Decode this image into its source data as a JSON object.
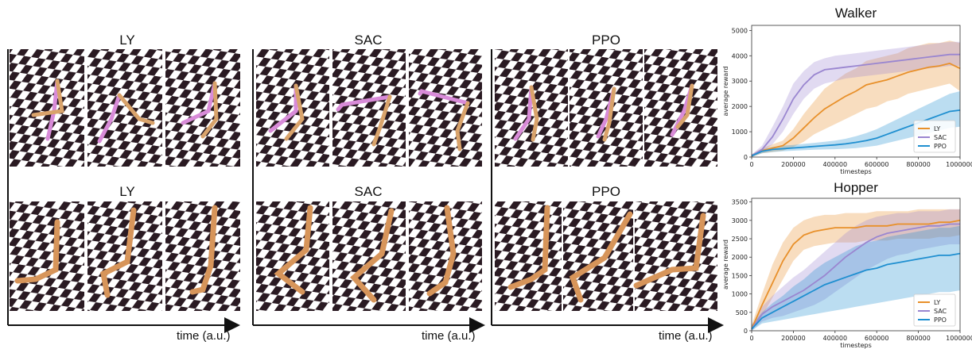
{
  "panels": [
    {
      "title": "LY",
      "robot": "walker"
    },
    {
      "title": "SAC",
      "robot": "walker"
    },
    {
      "title": "PPO",
      "robot": "walker"
    },
    {
      "title": "LY",
      "robot": "hopper"
    },
    {
      "title": "SAC",
      "robot": "hopper"
    },
    {
      "title": "PPO",
      "robot": "hopper"
    }
  ],
  "time_axis_label": "time (a.u.)",
  "colors": {
    "LY": "#e8902a",
    "SAC": "#9a86d0",
    "PPO": "#1f8fd0",
    "walker_limb_a": "#d88bd8",
    "walker_limb_b": "#d9a36b",
    "hopper_limb": "#d7955a"
  },
  "chart_data": [
    {
      "type": "line",
      "title": "Walker",
      "xlabel": "timesteps",
      "ylabel": "average reward",
      "xlim": [
        0,
        1000000
      ],
      "ylim": [
        0,
        5200
      ],
      "xticks": [
        0,
        200000,
        400000,
        600000,
        800000,
        1000000
      ],
      "yticks": [
        0,
        1000,
        2000,
        3000,
        4000,
        5000
      ],
      "legend": "bottom-right",
      "x": [
        0,
        50000,
        100000,
        150000,
        200000,
        250000,
        300000,
        350000,
        400000,
        450000,
        500000,
        550000,
        600000,
        650000,
        700000,
        750000,
        800000,
        850000,
        900000,
        950000,
        1000000
      ],
      "series": [
        {
          "name": "LY",
          "values": [
            50,
            250,
            350,
            450,
            750,
            1150,
            1550,
            1900,
            2150,
            2400,
            2600,
            2850,
            2950,
            3050,
            3200,
            3350,
            3450,
            3550,
            3600,
            3700,
            3500
          ],
          "band": [
            [
              0,
              100
            ],
            [
              150,
              350
            ],
            [
              200,
              500
            ],
            [
              250,
              650
            ],
            [
              400,
              1100
            ],
            [
              600,
              1700
            ],
            [
              900,
              2200
            ],
            [
              1100,
              2700
            ],
            [
              1300,
              3000
            ],
            [
              1500,
              3300
            ],
            [
              1700,
              3500
            ],
            [
              1900,
              3800
            ],
            [
              2000,
              3900
            ],
            [
              2200,
              4000
            ],
            [
              2300,
              4100
            ],
            [
              2500,
              4300
            ],
            [
              2600,
              4400
            ],
            [
              2700,
              4500
            ],
            [
              2800,
              4500
            ],
            [
              2900,
              4600
            ],
            [
              2600,
              4500
            ]
          ]
        },
        {
          "name": "SAC",
          "values": [
            50,
            300,
            800,
            1500,
            2300,
            2850,
            3250,
            3450,
            3500,
            3550,
            3600,
            3650,
            3700,
            3750,
            3800,
            3850,
            3900,
            3950,
            4000,
            4050,
            4050
          ],
          "band": [
            [
              0,
              100
            ],
            [
              200,
              450
            ],
            [
              500,
              1200
            ],
            [
              1000,
              2000
            ],
            [
              1700,
              2900
            ],
            [
              2300,
              3400
            ],
            [
              2700,
              3750
            ],
            [
              2900,
              3900
            ],
            [
              3000,
              4000
            ],
            [
              3100,
              4050
            ],
            [
              3150,
              4100
            ],
            [
              3200,
              4150
            ],
            [
              3250,
              4200
            ],
            [
              3300,
              4250
            ],
            [
              3350,
              4300
            ],
            [
              3400,
              4350
            ],
            [
              3450,
              4400
            ],
            [
              3500,
              4450
            ],
            [
              3550,
              4500
            ],
            [
              3600,
              4550
            ],
            [
              3600,
              4550
            ]
          ]
        },
        {
          "name": "PPO",
          "values": [
            50,
            230,
            300,
            330,
            360,
            390,
            420,
            450,
            480,
            520,
            580,
            650,
            750,
            900,
            1050,
            1200,
            1350,
            1500,
            1650,
            1800,
            1850
          ],
          "band": [
            [
              0,
              100
            ],
            [
              150,
              300
            ],
            [
              200,
              400
            ],
            [
              230,
              450
            ],
            [
              250,
              480
            ],
            [
              270,
              520
            ],
            [
              290,
              560
            ],
            [
              300,
              600
            ],
            [
              310,
              650
            ],
            [
              330,
              720
            ],
            [
              350,
              820
            ],
            [
              400,
              950
            ],
            [
              450,
              1100
            ],
            [
              550,
              1300
            ],
            [
              650,
              1500
            ],
            [
              750,
              1700
            ],
            [
              850,
              1900
            ],
            [
              950,
              2100
            ],
            [
              1050,
              2300
            ],
            [
              1150,
              2500
            ],
            [
              1200,
              2600
            ]
          ]
        }
      ]
    },
    {
      "type": "line",
      "title": "Hopper",
      "xlabel": "timesteps",
      "ylabel": "average reward",
      "xlim": [
        0,
        1000000
      ],
      "ylim": [
        0,
        3600
      ],
      "xticks": [
        0,
        200000,
        400000,
        600000,
        800000,
        1000000
      ],
      "yticks": [
        0,
        500,
        1000,
        1500,
        2000,
        2500,
        3000,
        3500
      ],
      "legend": "bottom-right",
      "x": [
        0,
        50000,
        100000,
        150000,
        200000,
        250000,
        300000,
        350000,
        400000,
        450000,
        500000,
        550000,
        600000,
        650000,
        700000,
        750000,
        800000,
        850000,
        900000,
        950000,
        1000000
      ],
      "series": [
        {
          "name": "LY",
          "values": [
            50,
            700,
            1300,
            1900,
            2350,
            2600,
            2700,
            2750,
            2800,
            2800,
            2800,
            2850,
            2850,
            2850,
            2900,
            2900,
            2900,
            2900,
            2950,
            2950,
            3000
          ],
          "band": [
            [
              0,
              150
            ],
            [
              400,
              1000
            ],
            [
              900,
              1800
            ],
            [
              1400,
              2400
            ],
            [
              1900,
              2800
            ],
            [
              2200,
              3000
            ],
            [
              2300,
              3100
            ],
            [
              2350,
              3150
            ],
            [
              2400,
              3150
            ],
            [
              2400,
              3200
            ],
            [
              2400,
              3200
            ],
            [
              2450,
              3200
            ],
            [
              2450,
              3250
            ],
            [
              2450,
              3250
            ],
            [
              2500,
              3250
            ],
            [
              2500,
              3250
            ],
            [
              2500,
              3300
            ],
            [
              2500,
              3300
            ],
            [
              2550,
              3300
            ],
            [
              2550,
              3300
            ],
            [
              2600,
              3300
            ]
          ]
        },
        {
          "name": "SAC",
          "values": [
            50,
            450,
            650,
            800,
            950,
            1100,
            1300,
            1500,
            1750,
            2000,
            2200,
            2400,
            2550,
            2650,
            2700,
            2750,
            2800,
            2850,
            2850,
            2900,
            2900
          ],
          "band": [
            [
              0,
              150
            ],
            [
              250,
              650
            ],
            [
              350,
              950
            ],
            [
              400,
              1200
            ],
            [
              500,
              1450
            ],
            [
              600,
              1650
            ],
            [
              700,
              1900
            ],
            [
              850,
              2150
            ],
            [
              1050,
              2400
            ],
            [
              1250,
              2650
            ],
            [
              1450,
              2850
            ],
            [
              1650,
              3000
            ],
            [
              1800,
              3100
            ],
            [
              1950,
              3150
            ],
            [
              2050,
              3200
            ],
            [
              2100,
              3200
            ],
            [
              2200,
              3250
            ],
            [
              2250,
              3250
            ],
            [
              2300,
              3250
            ],
            [
              2350,
              3300
            ],
            [
              2350,
              3300
            ]
          ]
        },
        {
          "name": "PPO",
          "values": [
            50,
            350,
            500,
            650,
            800,
            950,
            1100,
            1250,
            1350,
            1450,
            1550,
            1650,
            1700,
            1800,
            1850,
            1900,
            1950,
            2000,
            2050,
            2050,
            2100
          ],
          "band": [
            [
              0,
              150
            ],
            [
              200,
              500
            ],
            [
              250,
              750
            ],
            [
              300,
              950
            ],
            [
              350,
              1200
            ],
            [
              400,
              1400
            ],
            [
              450,
              1650
            ],
            [
              500,
              1850
            ],
            [
              550,
              2000
            ],
            [
              600,
              2150
            ],
            [
              650,
              2300
            ],
            [
              700,
              2400
            ],
            [
              750,
              2450
            ],
            [
              800,
              2550
            ],
            [
              850,
              2600
            ],
            [
              900,
              2650
            ],
            [
              950,
              2700
            ],
            [
              1000,
              2750
            ],
            [
              1050,
              2800
            ],
            [
              1050,
              2800
            ],
            [
              1100,
              2850
            ]
          ]
        }
      ]
    }
  ]
}
